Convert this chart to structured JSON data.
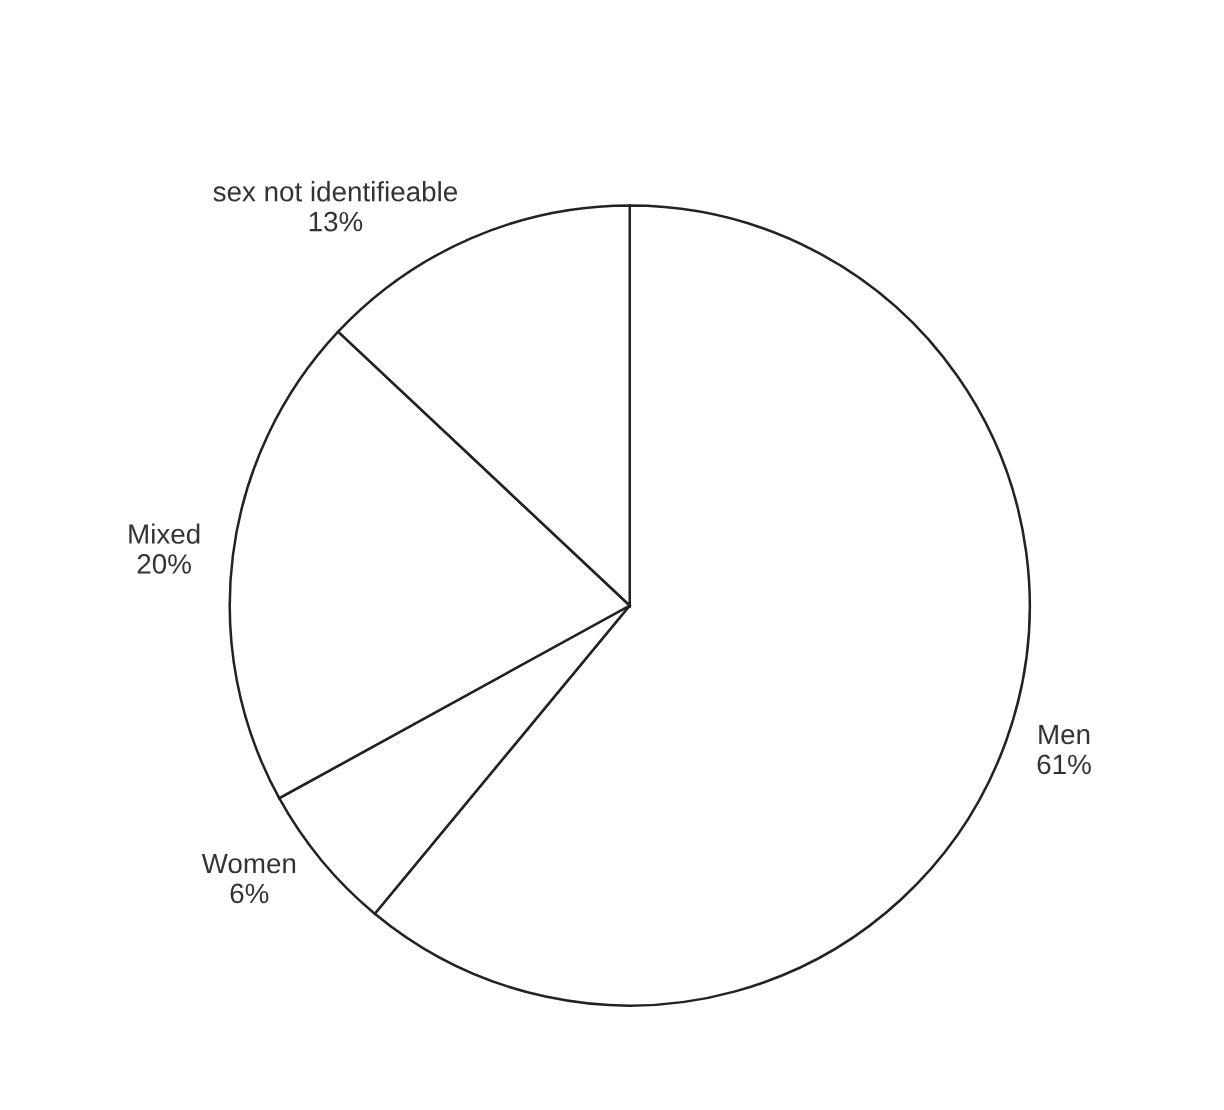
{
  "chart_data": {
    "type": "pie",
    "categories": [
      "Men",
      "Women",
      "Mixed",
      "sex not identifieable"
    ],
    "values": [
      61,
      6,
      20,
      13
    ],
    "value_labels": [
      "61%",
      "6%",
      "20%",
      "13%"
    ],
    "colors": [
      "#ffffff",
      "#ffffff",
      "#ffffff",
      "#ffffff"
    ]
  }
}
